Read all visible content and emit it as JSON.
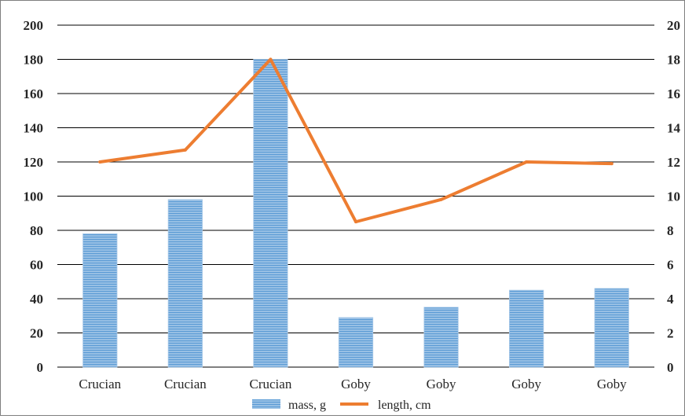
{
  "chart_data": {
    "type": "bar",
    "categories": [
      "Crucian",
      "Crucian",
      "Crucian",
      "Goby",
      "Goby",
      "Goby",
      "Goby"
    ],
    "series": [
      {
        "name": "mass, g",
        "type": "bar",
        "axis": "left",
        "values": [
          78,
          98,
          180,
          29,
          35,
          45,
          46
        ]
      },
      {
        "name": "length, cm",
        "type": "line",
        "axis": "right",
        "values": [
          12.0,
          12.7,
          18.0,
          8.5,
          9.8,
          12.0,
          11.9
        ]
      }
    ],
    "y_left": {
      "min": 0,
      "max": 200,
      "step": 20
    },
    "y_right": {
      "min": 0,
      "max": 20,
      "step": 2,
      "tick_labels": [
        "0",
        "2",
        "4",
        "6",
        "8",
        "10",
        "12",
        "14",
        "16",
        "18",
        "20"
      ]
    },
    "grid": true,
    "legend_position": "bottom",
    "colors": {
      "bar": "#5b9bd5",
      "bar_stripe": "#d6e6f5",
      "line": "#ed7d31",
      "grid": "#000000"
    }
  }
}
